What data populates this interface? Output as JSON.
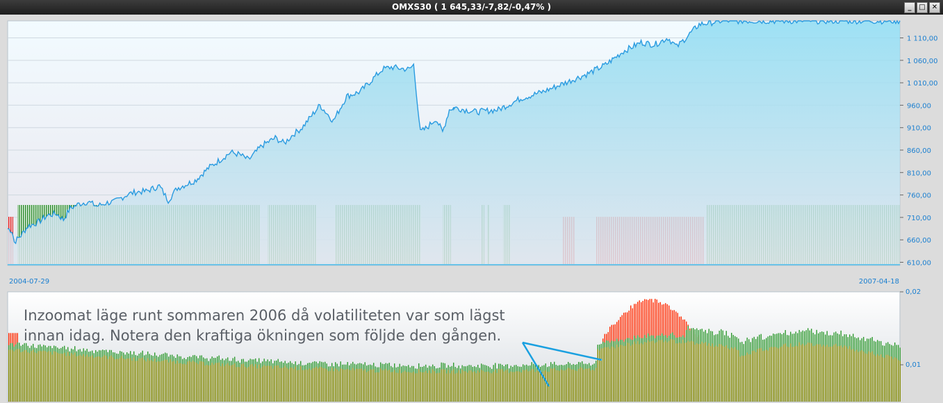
{
  "window": {
    "title": "OMXS30 ( 1 645,33/-7,82/-0,47% )",
    "buttons": [
      "_",
      "□",
      "✕"
    ]
  },
  "annotation": {
    "line1": "Inzoomat läge runt sommaren 2006 då volatiliteten var som lägst",
    "line2": "innan idag. Notera den kraftiga ökningen som följde den gången."
  },
  "colors": {
    "price_line": "#2a9be0",
    "signal_buy": "#2e8b2e",
    "signal_sell": "#e02020",
    "vol_high": "#ff2a00",
    "vol_base": "#8a8a00",
    "vol_green": "#2e9a2e",
    "annotation_arrow": "#1aa0e0"
  },
  "chart_data": [
    {
      "type": "line",
      "x_start": "2004-07-29",
      "x_end": "2007-04-18",
      "x_labels": [
        "2004-07-29",
        "2007-04-18"
      ],
      "y_ticks": [
        "1 110,00",
        "1 060,00",
        "1 010,00",
        "960,00",
        "910,00",
        "860,00",
        "810,00",
        "760,00",
        "710,00",
        "660,00",
        "610,00"
      ],
      "ylim": [
        603,
        1148
      ],
      "grid": true,
      "series": [
        {
          "points": [
            [
              0,
              685
            ],
            [
              0.01,
              680
            ],
            [
              0.015,
              655
            ],
            [
              0.03,
              670
            ],
            [
              0.045,
              690
            ],
            [
              0.07,
              700
            ],
            [
              0.09,
              715
            ],
            [
              0.11,
              718
            ],
            [
              0.125,
              705
            ],
            [
              0.14,
              730
            ],
            [
              0.16,
              740
            ],
            [
              0.18,
              745
            ],
            [
              0.2,
              735
            ],
            [
              0.22,
              742
            ],
            [
              0.24,
              745
            ],
            [
              0.27,
              762
            ],
            [
              0.29,
              767
            ],
            [
              0.31,
              768
            ],
            [
              0.34,
              780
            ],
            [
              0.36,
              748
            ],
            [
              0.38,
              775
            ],
            [
              0.42,
              792
            ],
            [
              0.45,
              820
            ],
            [
              0.5,
              855
            ],
            [
              0.52,
              850
            ],
            [
              0.54,
              838
            ],
            [
              0.57,
              870
            ],
            [
              0.6,
              887
            ],
            [
              0.62,
              875
            ],
            [
              0.64,
              895
            ],
            [
              0.66,
              910
            ],
            [
              0.7,
              960
            ],
            [
              0.73,
              925
            ],
            [
              0.76,
              980
            ],
            [
              0.79,
              990
            ],
            [
              0.82,
              1020
            ],
            [
              0.84,
              1040
            ],
            [
              0.86,
              1045
            ],
            [
              0.88,
              1042
            ],
            [
              0.9,
              1040
            ],
            [
              0.91,
              1050
            ],
            [
              0.925,
              900
            ],
            [
              0.94,
              910
            ],
            [
              0.96,
              930
            ],
            [
              0.975,
              900
            ],
            [
              0.99,
              950
            ],
            [
              1.0,
              955
            ]
          ]
        },
        {
          "points": [
            [
              0,
              955
            ],
            [
              0.05,
              945
            ],
            [
              0.1,
              950
            ],
            [
              0.15,
              975
            ],
            [
              0.2,
              990
            ],
            [
              0.25,
              1010
            ],
            [
              0.3,
              1030
            ],
            [
              0.34,
              1050
            ],
            [
              0.38,
              1080
            ],
            [
              0.42,
              1100
            ],
            [
              0.45,
              1095
            ],
            [
              0.48,
              1110
            ],
            [
              0.5,
              1090
            ],
            [
              0.52,
              1110
            ],
            [
              0.55,
              1140
            ],
            [
              0.6,
              1148
            ],
            [
              0.8,
              1148
            ],
            [
              0.9,
              1148
            ],
            [
              1.0,
              1148
            ]
          ]
        }
      ]
    },
    {
      "type": "bar",
      "y_ticks": [
        "0,02",
        "0,01"
      ],
      "ylim": [
        0,
        0.02
      ]
    }
  ]
}
